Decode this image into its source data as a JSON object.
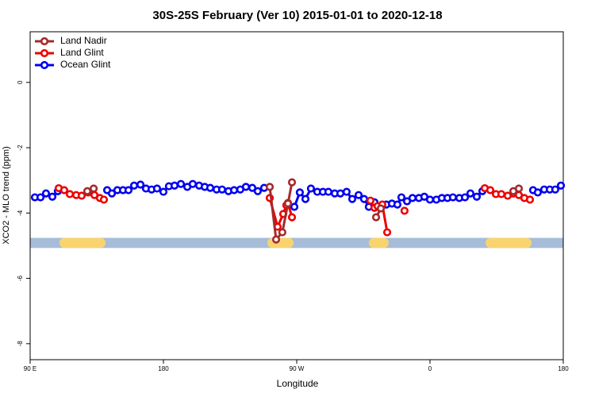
{
  "chart_data": {
    "type": "line",
    "title": "30S-25S February (Ver 10)   2015-01-01 to 2020-12-18",
    "x_label": "Longitude",
    "y_label": "XCO2 - MLO trend (ppm)",
    "xlim": [
      90,
      450
    ],
    "ylim": [
      -8.49,
      1.55
    ],
    "xticks": [
      {
        "value": 90,
        "label": "90 E"
      },
      180,
      {
        "value": 270,
        "label": "90 W"
      },
      {
        "value": 360,
        "label": "0"
      },
      {
        "value": 450,
        "label": "180"
      }
    ],
    "yticks": [
      0,
      -2,
      -4,
      -6,
      -8
    ],
    "legend": "top-left",
    "surface_band": {
      "ylim": [
        -5.07,
        -4.76
      ],
      "color": "#a6bcd9",
      "land_color": "#f9d46e",
      "land_segments": [
        [
          109.8,
          140.9
        ],
        [
          250.2,
          267.9
        ],
        [
          318.7,
          332.1
        ],
        [
          397.5,
          428.6
        ]
      ]
    },
    "series": [
      {
        "name": "Land Nadir",
        "color": "#a52a2a",
        "x": [
          128.6,
          132.9,
          200,
          251.8,
          256.1,
          260.3,
          264.1,
          266.8,
          300,
          323.6,
          326.8,
          380,
          416.3,
          420.0
        ],
        "values": [
          -3.33,
          -3.25,
          null,
          -3.2,
          -4.81,
          -4.59,
          -3.71,
          -3.06,
          null,
          -4.13,
          -3.86,
          null,
          -3.33,
          -3.25
        ]
      },
      {
        "name": "Land Glint",
        "color": "#ee0000",
        "x": [
          109.3,
          113.0,
          116.8,
          121.1,
          124.8,
          129.1,
          133.4,
          137.1,
          139.8,
          200,
          251.8,
          257.1,
          260.9,
          263.0,
          264.1,
          266.8,
          290,
          319.8,
          322.5,
          324.6,
          327.8,
          331.1,
          335,
          342.8,
          380,
          397.0,
          400.7,
          404.5,
          408.2,
          412.5,
          416.3,
          420.0,
          423.7,
          427.5
        ],
        "values": [
          -3.24,
          -3.3,
          -3.42,
          -3.45,
          -3.47,
          -3.37,
          -3.45,
          -3.54,
          -3.59,
          null,
          -3.54,
          -4.42,
          -4.03,
          -3.76,
          -3.69,
          -4.13,
          null,
          -3.62,
          -3.84,
          -3.79,
          -3.74,
          -4.59,
          null,
          -3.93,
          null,
          -3.24,
          -3.3,
          -3.42,
          -3.42,
          -3.47,
          -3.4,
          -3.45,
          -3.54,
          -3.59
        ]
      },
      {
        "name": "Ocean Glint",
        "color": "#0000ee",
        "x": [
          93.2,
          97.0,
          100.7,
          105.0,
          108.7,
          120,
          142.0,
          145.2,
          148.9,
          152.7,
          156.4,
          160.2,
          164.5,
          168.2,
          172.0,
          175.7,
          180.0,
          183.7,
          187.5,
          191.8,
          196.1,
          199.8,
          204.1,
          207.9,
          211.6,
          215.9,
          219.6,
          223.9,
          227.7,
          231.9,
          235.7,
          240.0,
          243.7,
          248.0,
          255,
          268.4,
          272.1,
          275.9,
          279.6,
          283.9,
          287.7,
          291.4,
          295.7,
          299.5,
          303.7,
          307.5,
          311.8,
          315.5,
          318.7,
          322.5,
          326.8,
          330.5,
          334.3,
          338.0,
          340.7,
          344.5,
          348.2,
          352.5,
          356.2,
          360.0,
          364.3,
          368.0,
          371.8,
          375.5,
          379.8,
          383.6,
          387.3,
          391.6,
          395.4,
          405,
          429.6,
          432.8,
          437.1,
          440.9,
          444.6,
          448.4
        ],
        "values": [
          -3.52,
          -3.52,
          -3.4,
          -3.5,
          -3.33,
          null,
          -3.3,
          -3.4,
          -3.3,
          -3.3,
          -3.3,
          -3.16,
          -3.13,
          -3.25,
          -3.28,
          -3.25,
          -3.35,
          -3.18,
          -3.16,
          -3.11,
          -3.2,
          -3.11,
          -3.16,
          -3.2,
          -3.23,
          -3.28,
          -3.28,
          -3.33,
          -3.3,
          -3.28,
          -3.2,
          -3.23,
          -3.33,
          -3.23,
          null,
          -3.81,
          -3.37,
          -3.57,
          -3.25,
          -3.35,
          -3.35,
          -3.35,
          -3.4,
          -3.4,
          -3.35,
          -3.57,
          -3.45,
          -3.57,
          -3.81,
          -3.67,
          -3.84,
          -3.74,
          -3.71,
          -3.74,
          -3.52,
          -3.64,
          -3.54,
          -3.54,
          -3.5,
          -3.59,
          -3.59,
          -3.54,
          -3.54,
          -3.52,
          -3.54,
          -3.52,
          -3.4,
          -3.5,
          -3.33,
          null,
          -3.3,
          -3.37,
          -3.28,
          -3.28,
          -3.28,
          -3.16
        ]
      }
    ]
  }
}
